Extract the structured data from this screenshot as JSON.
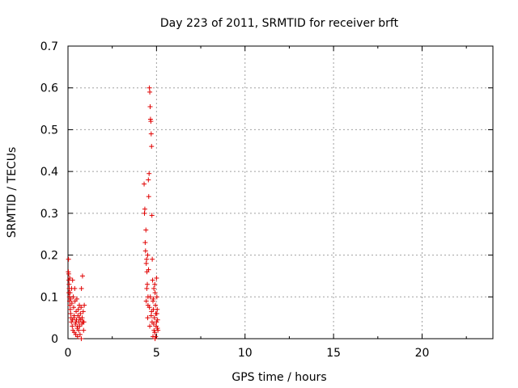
{
  "chart_data": {
    "type": "scatter",
    "title": "Day 223 of 2011, SRMTID for receiver brft",
    "xlabel": "GPS time / hours",
    "ylabel": "SRMTID / TECUs",
    "xlim": [
      0,
      24
    ],
    "ylim": [
      0,
      0.7
    ],
    "xticks": [
      0,
      5,
      10,
      15,
      20
    ],
    "yticks": [
      0,
      0.1,
      0.2,
      0.3,
      0.4,
      0.5,
      0.6,
      0.7
    ],
    "xtick_labels": [
      "0",
      "5",
      "10",
      "15",
      "20"
    ],
    "ytick_labels": [
      "0",
      "0.1",
      "0.2",
      "0.3",
      "0.4",
      "0.5",
      "0.6",
      "0.7"
    ],
    "grid": true,
    "marker": "+",
    "color": "#e00000",
    "series": [
      {
        "name": "SRMTID",
        "points": [
          [
            0.02,
            0.16
          ],
          [
            0.03,
            0.19
          ],
          [
            0.04,
            0.155
          ],
          [
            0.05,
            0.14
          ],
          [
            0.06,
            0.13
          ],
          [
            0.07,
            0.12
          ],
          [
            0.08,
            0.1
          ],
          [
            0.09,
            0.09
          ],
          [
            0.1,
            0.145
          ],
          [
            0.11,
            0.08
          ],
          [
            0.12,
            0.11
          ],
          [
            0.13,
            0.07
          ],
          [
            0.15,
            0.06
          ],
          [
            0.17,
            0.05
          ],
          [
            0.19,
            0.04
          ],
          [
            0.2,
            0.12
          ],
          [
            0.22,
            0.085
          ],
          [
            0.24,
            0.03
          ],
          [
            0.26,
            0.14
          ],
          [
            0.28,
            0.02
          ],
          [
            0.3,
            0.1
          ],
          [
            0.32,
            0.075
          ],
          [
            0.34,
            0.05
          ],
          [
            0.36,
            0.015
          ],
          [
            0.38,
            0.12
          ],
          [
            0.4,
            0.09
          ],
          [
            0.42,
            0.035
          ],
          [
            0.44,
            0.01
          ],
          [
            0.46,
            0.065
          ],
          [
            0.48,
            0.045
          ],
          [
            0.5,
            0.095
          ],
          [
            0.52,
            0.025
          ],
          [
            0.54,
            0.005
          ],
          [
            0.56,
            0.055
          ],
          [
            0.58,
            0.07
          ],
          [
            0.6,
            0.02
          ],
          [
            0.62,
            0.04
          ],
          [
            0.64,
            0.08
          ],
          [
            0.66,
            0.03
          ],
          [
            0.68,
            0.01
          ],
          [
            0.7,
            0.06
          ],
          [
            0.72,
            0.045
          ],
          [
            0.74,
            0.075
          ],
          [
            0.76,
            0.12
          ],
          [
            0.78,
            0.035
          ],
          [
            0.8,
            0.05
          ],
          [
            0.82,
            0.15
          ],
          [
            0.84,
            0.04
          ],
          [
            0.86,
            0.065
          ],
          [
            0.88,
            0.02
          ],
          [
            0.9,
            0.04
          ],
          [
            0.92,
            0.08
          ],
          [
            0.25,
            0.045
          ],
          [
            0.35,
            0.055
          ],
          [
            0.45,
            0.04
          ],
          [
            0.55,
            0.03
          ],
          [
            0.65,
            0.05
          ],
          [
            0.15,
            0.095
          ],
          [
            0.05,
            0.11
          ],
          [
            0.75,
            0.0
          ],
          [
            4.3,
            0.37
          ],
          [
            4.32,
            0.3
          ],
          [
            4.34,
            0.31
          ],
          [
            4.36,
            0.23
          ],
          [
            4.38,
            0.21
          ],
          [
            4.4,
            0.26
          ],
          [
            4.42,
            0.18
          ],
          [
            4.44,
            0.19
          ],
          [
            4.46,
            0.16
          ],
          [
            4.48,
            0.13
          ],
          [
            4.5,
            0.05
          ],
          [
            4.52,
            0.1
          ],
          [
            4.54,
            0.38
          ],
          [
            4.56,
            0.34
          ],
          [
            4.58,
            0.395
          ],
          [
            4.6,
            0.6
          ],
          [
            4.62,
            0.59
          ],
          [
            4.64,
            0.555
          ],
          [
            4.66,
            0.525
          ],
          [
            4.68,
            0.52
          ],
          [
            4.7,
            0.49
          ],
          [
            4.72,
            0.46
          ],
          [
            4.74,
            0.295
          ],
          [
            4.76,
            0.19
          ],
          [
            4.78,
            0.14
          ],
          [
            4.8,
            0.09
          ],
          [
            4.82,
            0.07
          ],
          [
            4.84,
            0.035
          ],
          [
            4.86,
            0.02
          ],
          [
            4.88,
            0.05
          ],
          [
            4.9,
            0.13
          ],
          [
            4.92,
            0.11
          ],
          [
            4.94,
            0.08
          ],
          [
            4.96,
            0.06
          ],
          [
            4.98,
            0.03
          ],
          [
            5.0,
            0.145
          ],
          [
            5.02,
            0.1
          ],
          [
            5.04,
            0.07
          ],
          [
            5.06,
            0.045
          ],
          [
            5.08,
            0.02
          ],
          [
            4.45,
            0.12
          ],
          [
            4.55,
            0.165
          ],
          [
            4.65,
            0.1
          ],
          [
            4.75,
            0.04
          ],
          [
            4.85,
            0.12
          ],
          [
            4.95,
            0.005
          ],
          [
            5.05,
            0.025
          ],
          [
            4.5,
            0.2
          ],
          [
            4.6,
            0.075
          ],
          [
            4.7,
            0.055
          ],
          [
            4.8,
            0.005
          ],
          [
            4.9,
            0.015
          ],
          [
            5.0,
            0.04
          ],
          [
            4.42,
            0.09
          ],
          [
            4.52,
            0.08
          ],
          [
            4.62,
            0.03
          ],
          [
            4.72,
            0.065
          ],
          [
            4.82,
            0.095
          ],
          [
            4.92,
            0.0
          ],
          [
            5.02,
            0.06
          ]
        ]
      }
    ]
  }
}
